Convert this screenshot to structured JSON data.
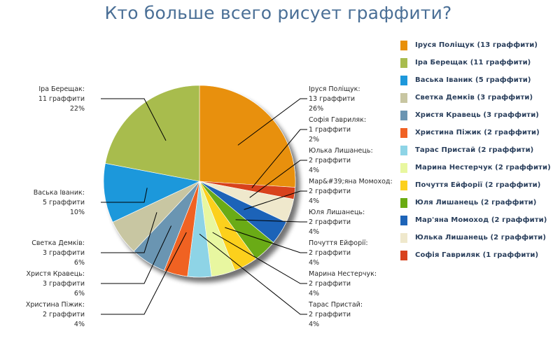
{
  "chart_data": {
    "type": "pie",
    "title": "Кто больше всего рисует граффити?",
    "slices": [
      {
        "name": "Іруся Поліщук",
        "value": 13,
        "percent": 26,
        "color": "#e8900a",
        "legend": "Іруся Поліщук (13 граффити)",
        "callout": [
          "Іруся Поліщук:",
          "13 граффити",
          "26%"
        ]
      },
      {
        "name": "Софія Гавриляк",
        "value": 1,
        "percent": 2,
        "color": "#d8421e",
        "legend": "Софія Гавриляк (1 граффити)",
        "callout": [
          "Софія Гавриляк:",
          "1 граффити",
          "2%"
        ]
      },
      {
        "name": "Юлька Лишанець",
        "value": 2,
        "percent": 4,
        "color": "#efe8cc",
        "legend": "Юлька Лишанець (2 граффити)",
        "callout": [
          "Юлька Лишанець:",
          "2 граффити",
          "4%"
        ]
      },
      {
        "name": "Мар'яна Момоход",
        "value": 2,
        "percent": 4,
        "color": "#1d64b8",
        "legend": "Мар'яна Момоход (2 граффити)",
        "callout": [
          "Мар&#39;яна Момоход:",
          "2 граффити",
          "4%"
        ]
      },
      {
        "name": "Юля Лишанець",
        "value": 2,
        "percent": 4,
        "color": "#6aab12",
        "legend": "Юля Лишанець (2 граффити)",
        "callout": [
          "Юля Лишанець:",
          "2 граффити",
          "4%"
        ]
      },
      {
        "name": "Почуття Ейфорії",
        "value": 2,
        "percent": 4,
        "color": "#fcd01c",
        "legend": "Почуття Ейфорії (2 граффити)",
        "callout": [
          "Почуття Ейфорії:",
          "2 граффити",
          "4%"
        ]
      },
      {
        "name": "Марина Нестерчук",
        "value": 2,
        "percent": 4,
        "color": "#e8f7a0",
        "legend": "Марина Нестерчук (2 граффити)",
        "callout": [
          "Марина Нестерчук:",
          "2 граффити",
          "4%"
        ]
      },
      {
        "name": "Тарас Пристай",
        "value": 2,
        "percent": 4,
        "color": "#8ed4e6",
        "legend": "Тарас Пристай (2 граффити)",
        "callout": [
          "Тарас Пристай:",
          "2 граффити",
          "4%"
        ]
      },
      {
        "name": "Христина Піжик",
        "value": 2,
        "percent": 4,
        "color": "#f06224",
        "legend": "Христина Піжик (2 граффити)",
        "callout": [
          "Христина Піжик:",
          "2 граффити",
          "4%"
        ]
      },
      {
        "name": "Христя Кравець",
        "value": 3,
        "percent": 6,
        "color": "#6b95b2",
        "legend": "Христя Кравець (3 граффити)",
        "callout": [
          "Христя Кравець:",
          "3 граффити",
          "6%"
        ]
      },
      {
        "name": "Светка Демків",
        "value": 3,
        "percent": 6,
        "color": "#c8c6a2",
        "legend": "Светка Демків (3 граффити)",
        "callout": [
          "Светка Демків:",
          "3 граффити",
          "6%"
        ]
      },
      {
        "name": "Васька Іваник",
        "value": 5,
        "percent": 10,
        "color": "#1e98db",
        "legend": "Васька Іваник (5 граффити)",
        "callout": [
          "Васька Іваник:",
          "5 граффити",
          "10%"
        ]
      },
      {
        "name": "Іра Берещак",
        "value": 11,
        "percent": 22,
        "color": "#a8bc4e",
        "legend": "Іра Берещак (11 граффити)",
        "callout": [
          "Іра Берещак:",
          "11 граффити",
          "22%"
        ]
      }
    ],
    "legend_order": [
      0,
      12,
      11,
      10,
      9,
      8,
      7,
      6,
      5,
      4,
      3,
      2,
      1
    ],
    "legend_position": "right"
  }
}
